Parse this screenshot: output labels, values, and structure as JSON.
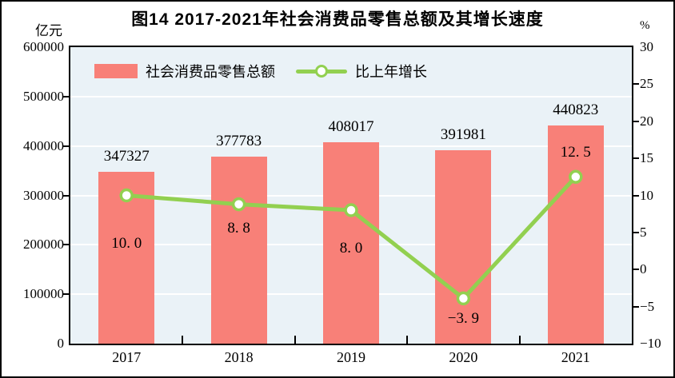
{
  "figure": {
    "title": "图14  2017-2021年社会消费品零售总额及其增长速度"
  },
  "chart_data": {
    "type": "bar",
    "combo": "bar + line, dual y-axis",
    "title": "图14  2017-2021年社会消费品零售总额及其增长速度",
    "categories": [
      "2017",
      "2018",
      "2019",
      "2020",
      "2021"
    ],
    "series": [
      {
        "name": "社会消费品零售总额",
        "type": "bar",
        "axis": "left",
        "values": [
          347327,
          377783,
          408017,
          391981,
          440823
        ],
        "value_labels": [
          "347327",
          "377783",
          "408017",
          "391981",
          "440823"
        ],
        "color": "#F88078"
      },
      {
        "name": "比上年增长",
        "type": "line",
        "axis": "right",
        "values": [
          10.0,
          8.8,
          8.0,
          -3.9,
          12.5
        ],
        "value_labels": [
          "10. 0",
          "8. 8",
          "8. 0",
          "−3. 9",
          "12. 5"
        ],
        "color": "#92D050",
        "marker": "circle-white-fill-green-ring",
        "label_dy": [
          60,
          30,
          48,
          26,
          -30
        ]
      }
    ],
    "left_axis": {
      "unit": "亿元",
      "min": 0,
      "max": 600000,
      "step": 100000,
      "tick_labels": [
        "600000",
        "500000",
        "400000",
        "300000",
        "200000",
        "100000",
        "0"
      ]
    },
    "right_axis": {
      "unit": "%",
      "min": -10,
      "max": 30,
      "step": 5,
      "tick_labels": [
        "30",
        "25",
        "20",
        "15",
        "10",
        "5",
        "0",
        "−5",
        "−10"
      ]
    },
    "legend": {
      "position": "top-inside-left",
      "entries": [
        "社会消费品零售总额",
        "比上年增长"
      ]
    },
    "grid": true,
    "colors": {
      "plot_bg": "#EAF2F7",
      "gridline": "#FFFFFF",
      "bar": "#F88078",
      "line": "#92D050",
      "text": "#000000",
      "border": "#000000"
    }
  }
}
